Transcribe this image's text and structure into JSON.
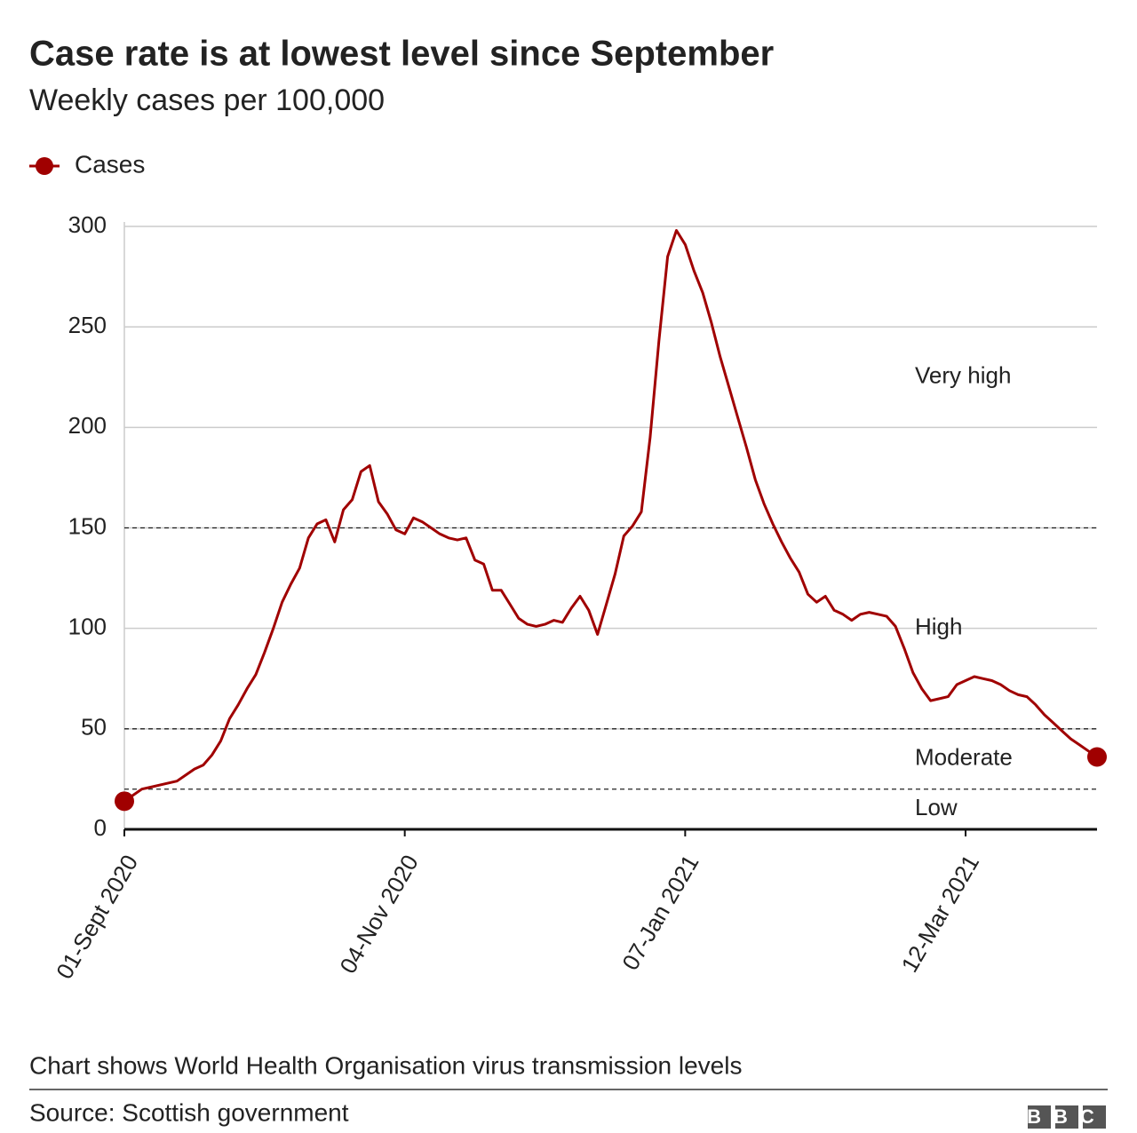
{
  "chart_data": {
    "type": "line",
    "title": "Case rate is at lowest level since September",
    "subtitle": "Weekly cases per 100,000",
    "caption": "Chart shows World Health Organisation virus transmission levels",
    "source": "Source: Scottish government",
    "logo": "BBC",
    "categories": [
      "01-Sept 2020",
      null,
      null,
      null,
      null,
      null,
      null,
      null,
      null,
      null,
      null,
      null,
      null,
      null,
      null,
      null,
      null,
      null,
      null,
      null,
      null,
      null,
      null,
      null,
      null,
      null,
      null,
      null,
      null,
      null,
      null,
      null,
      "04-Nov 2020",
      null,
      null,
      null,
      null,
      null,
      null,
      null,
      null,
      null,
      null,
      null,
      null,
      null,
      null,
      null,
      null,
      null,
      null,
      null,
      null,
      null,
      null,
      null,
      null,
      null,
      null,
      null,
      null,
      null,
      null,
      null,
      "07-Jan 2021",
      null,
      null,
      null,
      null,
      null,
      null,
      null,
      null,
      null,
      null,
      null,
      null,
      null,
      null,
      null,
      null,
      null,
      null,
      null,
      null,
      null,
      null,
      null,
      null,
      null,
      null,
      null,
      null,
      null,
      null,
      null,
      "12-Mar 2021",
      null,
      null,
      null,
      null,
      null,
      null,
      null,
      null,
      null,
      null,
      null,
      null,
      null,
      null,
      null
    ],
    "series": [
      {
        "name": "Cases",
        "color": "#a00000",
        "values": [
          14,
          17,
          20,
          21,
          22,
          23,
          24,
          27,
          30,
          32,
          37,
          44,
          55,
          62,
          70,
          77,
          88,
          100,
          113,
          122,
          130,
          145,
          152,
          154,
          143,
          159,
          164,
          178,
          181,
          163,
          157,
          149,
          147,
          155,
          153,
          150,
          147,
          145,
          144,
          145,
          134,
          132,
          119,
          119,
          112,
          105,
          102,
          101,
          102,
          104,
          103,
          110,
          116,
          109,
          97,
          112,
          127,
          146,
          151,
          158,
          195,
          243,
          285,
          298,
          291,
          278,
          267,
          252,
          235,
          220,
          205,
          190,
          174,
          162,
          152,
          143,
          135,
          128,
          117,
          113,
          116,
          109,
          107,
          104,
          107,
          108,
          107,
          106,
          101,
          90,
          78,
          70,
          64,
          65,
          66,
          72,
          74,
          76,
          75,
          74,
          72,
          69,
          67,
          66,
          62,
          57,
          53,
          49,
          45,
          42,
          39,
          36
        ]
      }
    ],
    "ylim": [
      0,
      300
    ],
    "yticks": [
      0,
      50,
      100,
      150,
      200,
      250,
      300
    ],
    "grid": true,
    "zones": [
      {
        "label": "Low",
        "from": 0,
        "to": 20
      },
      {
        "label": "Moderate",
        "from": 20,
        "to": 50
      },
      {
        "label": "High",
        "from": 50,
        "to": 150
      },
      {
        "label": "Very high",
        "from": 150,
        "to": 300
      }
    ]
  }
}
